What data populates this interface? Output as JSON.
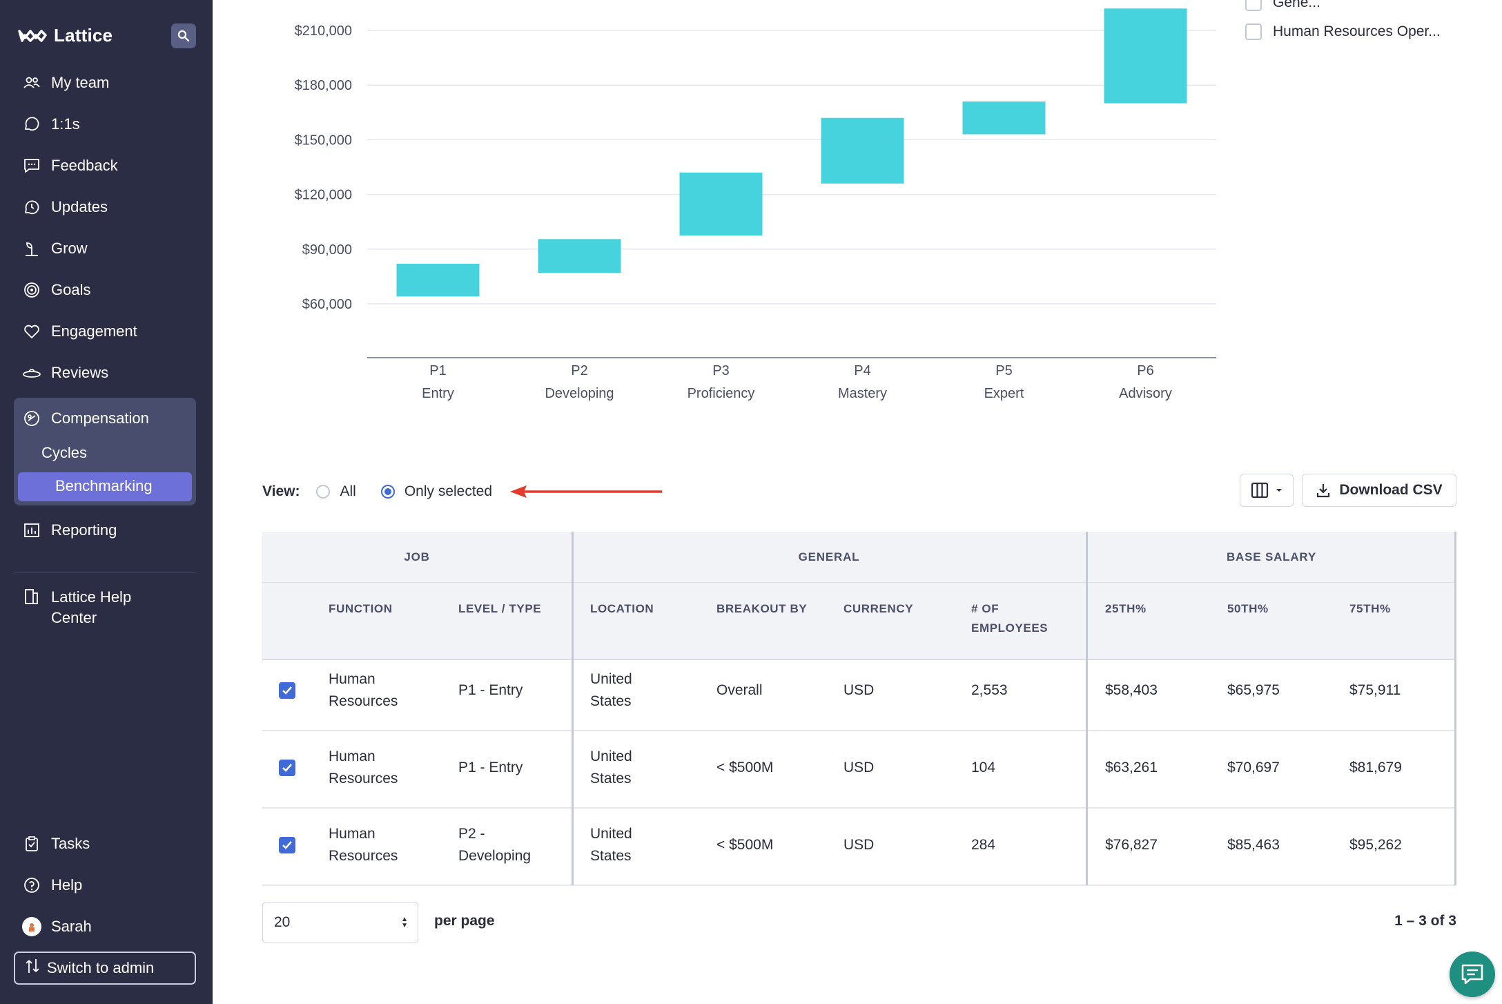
{
  "sidebar": {
    "app_name": "Lattice",
    "nav": [
      {
        "label": "My team",
        "icon": "people-icon"
      },
      {
        "label": "1:1s",
        "icon": "chat-bubbles-icon"
      },
      {
        "label": "Feedback",
        "icon": "message-icon"
      },
      {
        "label": "Updates",
        "icon": "clock-icon"
      },
      {
        "label": "Grow",
        "icon": "plant-icon"
      },
      {
        "label": "Goals",
        "icon": "target-icon"
      },
      {
        "label": "Engagement",
        "icon": "heart-icon"
      },
      {
        "label": "Reviews",
        "icon": "reviews-icon"
      }
    ],
    "compensation": {
      "label": "Compensation",
      "sub": [
        "Cycles",
        "Benchmarking"
      ]
    },
    "reporting": "Reporting",
    "help_center": "Lattice Help Center",
    "bottom": {
      "tasks": "Tasks",
      "help": "Help",
      "user": "Sarah",
      "switch": "Switch to admin"
    }
  },
  "legend": {
    "items": [
      "Gene...",
      "Human Resources Oper..."
    ]
  },
  "chart_data": {
    "type": "bar",
    "subtype": "floating-range",
    "categories": [
      "P1",
      "P2",
      "P3",
      "P4",
      "P5",
      "P6"
    ],
    "category_sublabels": [
      "Entry",
      "Developing",
      "Proficiency",
      "Mastery",
      "Expert",
      "Advisory"
    ],
    "ranges": [
      [
        64000,
        82000
      ],
      [
        77000,
        95500
      ],
      [
        97500,
        132000
      ],
      [
        126000,
        162000
      ],
      [
        153000,
        171000
      ],
      [
        170000,
        222000
      ]
    ],
    "y_ticks": [
      "$60,000",
      "$90,000",
      "$120,000",
      "$150,000",
      "$180,000",
      "$210,000"
    ],
    "y_tick_values": [
      60000,
      90000,
      120000,
      150000,
      180000,
      210000
    ],
    "color": "#47d3de"
  },
  "view": {
    "label": "View:",
    "options": [
      "All",
      "Only selected"
    ],
    "selected": "Only selected"
  },
  "toolbar": {
    "columns_icon": "columns-icon",
    "download": "Download CSV"
  },
  "table": {
    "groups": [
      "JOB",
      "GENERAL",
      "BASE SALARY"
    ],
    "headers": {
      "function": "Function",
      "level": "Level / Type",
      "location": "Location",
      "breakout": "Breakout by",
      "currency": "Currency",
      "employees_1": "# of",
      "employees_2": "employees",
      "p25": "25th%",
      "p50": "50th%",
      "p75": "75th%"
    },
    "rows": [
      {
        "function_1": "Human",
        "function_2": "Resources",
        "level_1": "P1 - Entry",
        "level_2": "",
        "location_1": "United",
        "location_2": "States",
        "breakout": "Overall",
        "currency": "USD",
        "employees": "2,553",
        "p25": "$58,403",
        "p50": "$65,975",
        "p75": "$75,911"
      },
      {
        "function_1": "Human",
        "function_2": "Resources",
        "level_1": "P1 - Entry",
        "level_2": "",
        "location_1": "United",
        "location_2": "States",
        "breakout": "< $500M",
        "currency": "USD",
        "employees": "104",
        "p25": "$63,261",
        "p50": "$70,697",
        "p75": "$81,679"
      },
      {
        "function_1": "Human",
        "function_2": "Resources",
        "level_1": "P2 -",
        "level_2": "Developing",
        "location_1": "United",
        "location_2": "States",
        "breakout": "< $500M",
        "currency": "USD",
        "employees": "284",
        "p25": "$76,827",
        "p50": "$85,463",
        "p75": "$95,262"
      }
    ]
  },
  "pagination": {
    "per_page_value": "20",
    "per_page_label": "per page",
    "count": "1 – 3 of 3"
  }
}
